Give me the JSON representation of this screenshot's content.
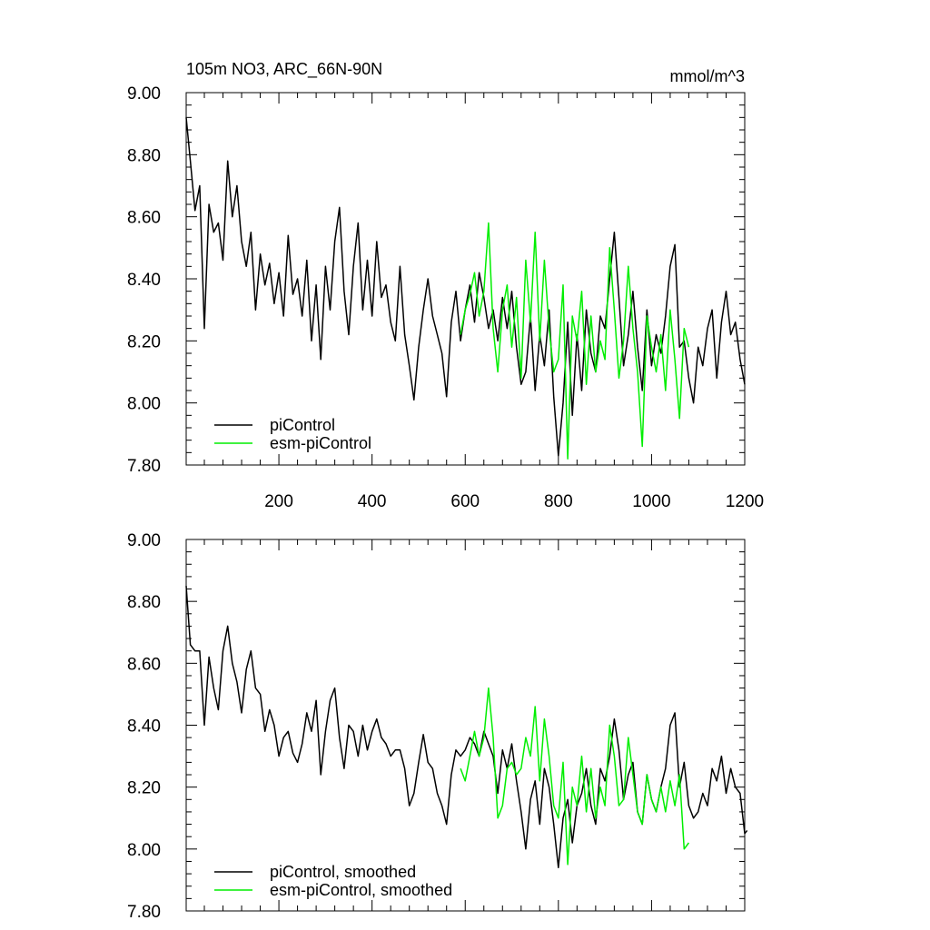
{
  "chart_data": [
    {
      "type": "line",
      "title_left": "105m NO3, ARC_66N-90N",
      "title_right": "mmol/m^3",
      "xlabel": "",
      "ylabel": "",
      "xlim": [
        1,
        1200
      ],
      "ylim": [
        7.8,
        9.0
      ],
      "x_ticks": [
        200,
        400,
        600,
        800,
        1000,
        1200
      ],
      "x_tick_labels": [
        "200",
        "400",
        "600",
        "800",
        "1000",
        "1200"
      ],
      "y_ticks": [
        7.8,
        8.0,
        8.2,
        8.4,
        8.6,
        8.8,
        9.0
      ],
      "y_tick_labels": [
        "7.80",
        "8.00",
        "8.20",
        "8.40",
        "8.60",
        "8.80",
        "9.00"
      ],
      "grid": false,
      "legend_position": "bottom-left",
      "series": [
        {
          "name": "piControl",
          "color": "#000000",
          "x": [
            1,
            10,
            20,
            30,
            40,
            50,
            60,
            70,
            80,
            90,
            100,
            110,
            120,
            130,
            140,
            150,
            160,
            170,
            180,
            190,
            200,
            210,
            220,
            230,
            240,
            250,
            260,
            270,
            280,
            290,
            300,
            310,
            320,
            330,
            340,
            350,
            360,
            370,
            380,
            390,
            400,
            410,
            420,
            430,
            440,
            450,
            460,
            470,
            480,
            490,
            500,
            510,
            520,
            530,
            540,
            550,
            560,
            570,
            580,
            590,
            600,
            610,
            620,
            630,
            640,
            650,
            660,
            670,
            680,
            690,
            700,
            710,
            720,
            730,
            740,
            750,
            760,
            770,
            780,
            790,
            800,
            810,
            820,
            830,
            840,
            850,
            860,
            870,
            880,
            890,
            900,
            910,
            920,
            930,
            940,
            950,
            960,
            970,
            980,
            990,
            1000,
            1010,
            1020,
            1030,
            1040,
            1050,
            1060,
            1070,
            1080,
            1090,
            1100,
            1110,
            1120,
            1130,
            1140,
            1150,
            1160,
            1170,
            1180,
            1190,
            1200
          ],
          "y": [
            8.92,
            8.78,
            8.62,
            8.7,
            8.24,
            8.64,
            8.55,
            8.58,
            8.46,
            8.78,
            8.6,
            8.7,
            8.52,
            8.44,
            8.55,
            8.3,
            8.48,
            8.38,
            8.45,
            8.32,
            8.42,
            8.28,
            8.54,
            8.35,
            8.4,
            8.28,
            8.46,
            8.2,
            8.38,
            8.14,
            8.44,
            8.3,
            8.52,
            8.63,
            8.36,
            8.22,
            8.44,
            8.58,
            8.3,
            8.46,
            8.28,
            8.52,
            8.34,
            8.38,
            8.26,
            8.2,
            8.44,
            8.22,
            8.12,
            8.01,
            8.18,
            8.3,
            8.4,
            8.28,
            8.22,
            8.16,
            8.02,
            8.26,
            8.36,
            8.2,
            8.3,
            8.38,
            8.26,
            8.42,
            8.34,
            8.24,
            8.3,
            8.2,
            8.34,
            8.24,
            8.36,
            8.18,
            8.06,
            8.1,
            8.28,
            8.04,
            8.22,
            8.12,
            8.3,
            8.02,
            7.83,
            8.0,
            8.26,
            7.96,
            8.22,
            8.04,
            8.3,
            8.16,
            8.1,
            8.28,
            8.24,
            8.4,
            8.55,
            8.34,
            8.12,
            8.22,
            8.36,
            8.18,
            8.04,
            8.3,
            8.12,
            8.22,
            8.16,
            8.28,
            8.44,
            8.51,
            8.18,
            8.2,
            8.08,
            8.0,
            8.18,
            8.12,
            8.24,
            8.3,
            8.08,
            8.26,
            8.36,
            8.22,
            8.26,
            8.14,
            8.06
          ],
          "stroke_width": 1.5
        },
        {
          "name": "esm-piControl",
          "color": "#00ee00",
          "x": [
            590,
            600,
            610,
            620,
            630,
            640,
            650,
            660,
            670,
            680,
            690,
            700,
            710,
            720,
            730,
            740,
            750,
            760,
            770,
            780,
            790,
            800,
            810,
            820,
            830,
            840,
            850,
            860,
            870,
            880,
            890,
            900,
            910,
            920,
            930,
            940,
            950,
            960,
            970,
            980,
            990,
            1000,
            1010,
            1020,
            1030,
            1040,
            1050,
            1060,
            1070,
            1080
          ],
          "y": [
            8.22,
            8.3,
            8.35,
            8.42,
            8.28,
            8.36,
            8.58,
            8.24,
            8.1,
            8.3,
            8.38,
            8.18,
            8.34,
            8.08,
            8.46,
            8.26,
            8.55,
            8.2,
            8.46,
            8.24,
            8.1,
            8.14,
            8.38,
            7.82,
            8.28,
            8.2,
            8.36,
            8.06,
            8.28,
            8.1,
            8.2,
            8.14,
            8.5,
            8.3,
            8.08,
            8.2,
            8.44,
            8.24,
            8.1,
            7.86,
            8.28,
            8.18,
            8.1,
            8.22,
            8.04,
            8.3,
            8.14,
            7.95,
            8.24,
            8.18
          ],
          "stroke_width": 1.5
        }
      ]
    },
    {
      "type": "line",
      "title_left": "",
      "title_right": "",
      "xlabel": "",
      "ylabel": "",
      "xlim": [
        1,
        1200
      ],
      "ylim": [
        7.8,
        9.0
      ],
      "x_ticks": [
        200,
        400,
        600,
        800,
        1000,
        1200
      ],
      "x_tick_labels": [],
      "y_ticks": [
        7.8,
        8.0,
        8.2,
        8.4,
        8.6,
        8.8,
        9.0
      ],
      "y_tick_labels": [
        "7.80",
        "8.00",
        "8.20",
        "8.40",
        "8.60",
        "8.80",
        "9.00"
      ],
      "grid": false,
      "legend_position": "bottom-left",
      "series": [
        {
          "name": "piControl, smoothed",
          "color": "#000000",
          "x": [
            1,
            10,
            20,
            30,
            40,
            50,
            60,
            70,
            80,
            90,
            100,
            110,
            120,
            130,
            140,
            150,
            160,
            170,
            180,
            190,
            200,
            210,
            220,
            230,
            240,
            250,
            260,
            270,
            280,
            290,
            300,
            310,
            320,
            330,
            340,
            350,
            360,
            370,
            380,
            390,
            400,
            410,
            420,
            430,
            440,
            450,
            460,
            470,
            480,
            490,
            500,
            510,
            520,
            530,
            540,
            550,
            560,
            570,
            580,
            590,
            600,
            610,
            620,
            630,
            640,
            650,
            660,
            670,
            680,
            690,
            700,
            710,
            720,
            730,
            740,
            750,
            760,
            770,
            780,
            790,
            800,
            810,
            820,
            830,
            840,
            850,
            860,
            870,
            880,
            890,
            900,
            910,
            920,
            930,
            940,
            950,
            960,
            970,
            980,
            990,
            1000,
            1010,
            1020,
            1030,
            1040,
            1050,
            1060,
            1070,
            1080,
            1090,
            1100,
            1110,
            1120,
            1130,
            1140,
            1150,
            1160,
            1170,
            1180,
            1190,
            1200,
            1205
          ],
          "y": [
            8.85,
            8.66,
            8.64,
            8.64,
            8.4,
            8.62,
            8.52,
            8.45,
            8.64,
            8.72,
            8.6,
            8.54,
            8.44,
            8.58,
            8.64,
            8.52,
            8.5,
            8.38,
            8.45,
            8.4,
            8.3,
            8.36,
            8.38,
            8.31,
            8.28,
            8.34,
            8.44,
            8.38,
            8.48,
            8.24,
            8.38,
            8.48,
            8.52,
            8.36,
            8.26,
            8.4,
            8.38,
            8.3,
            8.4,
            8.32,
            8.38,
            8.42,
            8.36,
            8.34,
            8.3,
            8.32,
            8.32,
            8.26,
            8.14,
            8.18,
            8.28,
            8.37,
            8.28,
            8.26,
            8.18,
            8.14,
            8.08,
            8.24,
            8.32,
            8.3,
            8.32,
            8.36,
            8.34,
            8.3,
            8.38,
            8.34,
            8.3,
            8.18,
            8.32,
            8.26,
            8.34,
            8.22,
            8.12,
            8.0,
            8.16,
            8.22,
            8.08,
            8.26,
            8.2,
            8.08,
            7.94,
            8.1,
            8.16,
            8.02,
            8.14,
            8.18,
            8.26,
            8.14,
            8.08,
            8.26,
            8.22,
            8.3,
            8.42,
            8.32,
            8.16,
            8.24,
            8.28,
            8.12,
            8.08,
            8.24,
            8.16,
            8.12,
            8.2,
            8.26,
            8.4,
            8.44,
            8.2,
            8.28,
            8.14,
            8.1,
            8.12,
            8.18,
            8.14,
            8.26,
            8.22,
            8.3,
            8.18,
            8.26,
            8.2,
            8.18,
            8.05,
            8.06
          ]
        },
        {
          "name": "esm-piControl, smoothed",
          "color": "#00ee00",
          "x": [
            590,
            600,
            610,
            620,
            630,
            640,
            650,
            660,
            670,
            680,
            690,
            700,
            710,
            720,
            730,
            740,
            750,
            760,
            770,
            780,
            790,
            800,
            810,
            820,
            830,
            840,
            850,
            860,
            870,
            880,
            890,
            900,
            910,
            920,
            930,
            940,
            950,
            960,
            970,
            980,
            990,
            1000,
            1010,
            1020,
            1030,
            1040,
            1050,
            1060,
            1070,
            1080
          ],
          "y": [
            8.26,
            8.22,
            8.3,
            8.38,
            8.3,
            8.36,
            8.52,
            8.36,
            8.1,
            8.14,
            8.26,
            8.28,
            8.24,
            8.26,
            8.36,
            8.3,
            8.46,
            8.22,
            8.42,
            8.3,
            8.14,
            8.1,
            8.28,
            7.95,
            8.2,
            8.14,
            8.3,
            8.12,
            8.26,
            8.1,
            8.2,
            8.14,
            8.4,
            8.3,
            8.14,
            8.16,
            8.36,
            8.24,
            8.12,
            8.08,
            8.24,
            8.16,
            8.12,
            8.2,
            8.12,
            8.22,
            8.14,
            8.24,
            8.0,
            8.02
          ]
        }
      ]
    }
  ]
}
